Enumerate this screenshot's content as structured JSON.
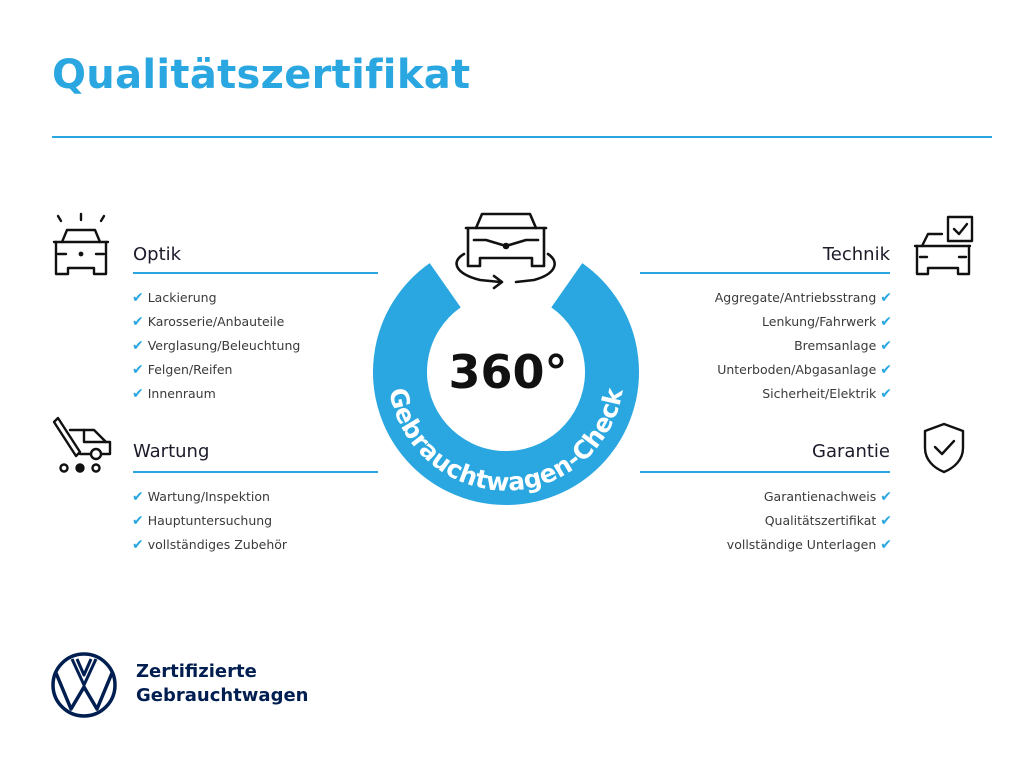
{
  "title": "Qualitätszertifikat",
  "center": {
    "number": "360°",
    "arc_text": "Gebrauchtwagen-Check",
    "icon": "car-rotate-icon"
  },
  "sections": {
    "optik": {
      "heading": "Optik",
      "icon": "car-lights-icon",
      "items": [
        "Lackierung",
        "Karosserie/Anbauteile",
        "Verglasung/Beleuchtung",
        "Felgen/Reifen",
        "Innenraum"
      ]
    },
    "wartung": {
      "heading": "Wartung",
      "icon": "car-service-icon",
      "items": [
        "Wartung/Inspektion",
        "Hauptuntersuchung",
        "vollständiges Zubehör"
      ]
    },
    "technik": {
      "heading": "Technik",
      "icon": "car-checkbox-icon",
      "items": [
        "Aggregate/Antriebsstrang",
        "Lenkung/Fahrwerk",
        "Bremsanlage",
        "Unterboden/Abgasanlage",
        "Sicherheit/Elektrik"
      ]
    },
    "garantie": {
      "heading": "Garantie",
      "icon": "shield-check-icon",
      "items": [
        "Garantienachweis",
        "Qualitätszertifikat",
        "vollständige Unterlagen"
      ]
    }
  },
  "footer": {
    "line1": "Zertifizierte",
    "line2": "Gebrauchtwagen",
    "logo": "vw-logo"
  },
  "colors": {
    "accent": "#2aa7e0",
    "brand_navy": "#001e50",
    "text": "#1b1b2a"
  }
}
